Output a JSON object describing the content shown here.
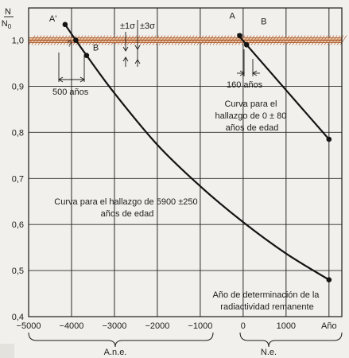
{
  "chart_data": {
    "type": "line",
    "ylabel_num": "N",
    "ylabel_den": "N",
    "ylabel_den_sub": "0",
    "xlim": [
      -5000,
      2300
    ],
    "ylim": [
      0.4,
      1.07
    ],
    "yticks": [
      {
        "v": 1.0,
        "label": "1,0"
      },
      {
        "v": 0.9,
        "label": "0,9"
      },
      {
        "v": 0.8,
        "label": "0,8"
      },
      {
        "v": 0.7,
        "label": "0,7"
      },
      {
        "v": 0.6,
        "label": "0,6"
      },
      {
        "v": 0.5,
        "label": "0,5"
      },
      {
        "v": 0.4,
        "label": "0,4"
      }
    ],
    "xticks": [
      {
        "v": -5000,
        "label": "−5000"
      },
      {
        "v": -4000,
        "label": "−4000"
      },
      {
        "v": -3000,
        "label": "−3000"
      },
      {
        "v": -2000,
        "label": "−2000"
      },
      {
        "v": -1000,
        "label": "−1000"
      },
      {
        "v": 0,
        "label": "0"
      },
      {
        "v": 1000,
        "label": "1000"
      },
      {
        "v": 2000,
        "label": "Año"
      }
    ],
    "grid": true,
    "band": {
      "center": 1.0,
      "label_1s": "±1σ",
      "label_3s": "±3σ"
    },
    "series": [
      {
        "x": [
          -4150,
          -3900,
          -3650,
          -3000,
          -2000,
          -1000,
          0,
          1000,
          2000
        ],
        "y": [
          1.034,
          1.0,
          0.967,
          0.885,
          0.773,
          0.683,
          0.605,
          0.537,
          0.48
        ],
        "points": [
          {
            "x": -4150,
            "y": 1.034,
            "label": "A'"
          },
          {
            "x": -3900,
            "y": 1.0,
            "label": "?"
          },
          {
            "x": -3650,
            "y": 0.967,
            "label": "B"
          },
          {
            "x": 2000,
            "y": 0.48,
            "label": ""
          }
        ]
      },
      {
        "x": [
          -80,
          80,
          2000
        ],
        "y": [
          1.01,
          0.99,
          0.785
        ],
        "points": [
          {
            "x": -80,
            "y": 1.01,
            "label": "A"
          },
          {
            "x": 80,
            "y": 0.99,
            "label": "B"
          },
          {
            "x": 2000,
            "y": 0.785,
            "label": ""
          }
        ]
      }
    ],
    "annotations": {
      "span1": "500 años",
      "span2": "160 años",
      "curve2": [
        "Curva para el",
        "hallazgo de 0 ± 80",
        "años de edad"
      ],
      "curve1": [
        "Curva para el hallazgo de 5900 ±250",
        "años de edad"
      ],
      "final": [
        "Año de determinación de la",
        "radiactividad remanente"
      ]
    },
    "eras": {
      "bc": "A.n.e.",
      "ad": "N.e."
    }
  }
}
